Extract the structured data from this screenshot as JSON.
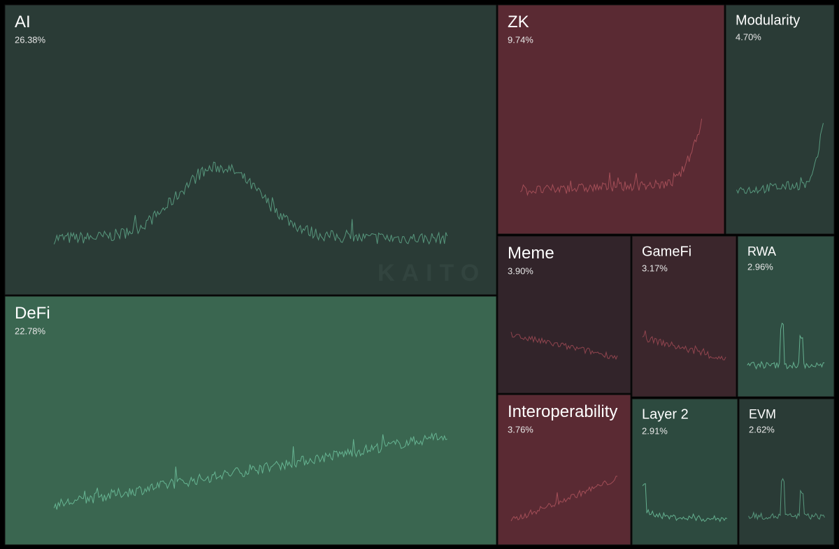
{
  "chart_data": {
    "type": "treemap",
    "watermark": "KAITO",
    "categories": [
      "AI",
      "DeFi",
      "ZK",
      "Modularity",
      "Meme",
      "GameFi",
      "RWA",
      "Interoperability",
      "Layer 2",
      "EVM"
    ],
    "values": [
      26.38,
      22.78,
      9.74,
      4.7,
      3.9,
      3.17,
      2.96,
      3.76,
      2.91,
      2.62
    ],
    "value_labels": [
      "26.38%",
      "22.78%",
      "9.74%",
      "4.70%",
      "3.90%",
      "3.17%",
      "2.96%",
      "3.76%",
      "2.91%",
      "2.62%"
    ],
    "colors": [
      "#2a3b36",
      "#3a6650",
      "#5a2a33",
      "#2a3b36",
      "#32242a",
      "#3b262c",
      "#2f4d42",
      "#5a2a33",
      "#2d4a3f",
      "#2a3b36"
    ],
    "line_colors": [
      "#5fa88a",
      "#6fc29d",
      "#b0555e",
      "#5fa88a",
      "#a04a55",
      "#a04a55",
      "#6fc29d",
      "#b0555e",
      "#6fc29d",
      "#5fa88a"
    ]
  }
}
